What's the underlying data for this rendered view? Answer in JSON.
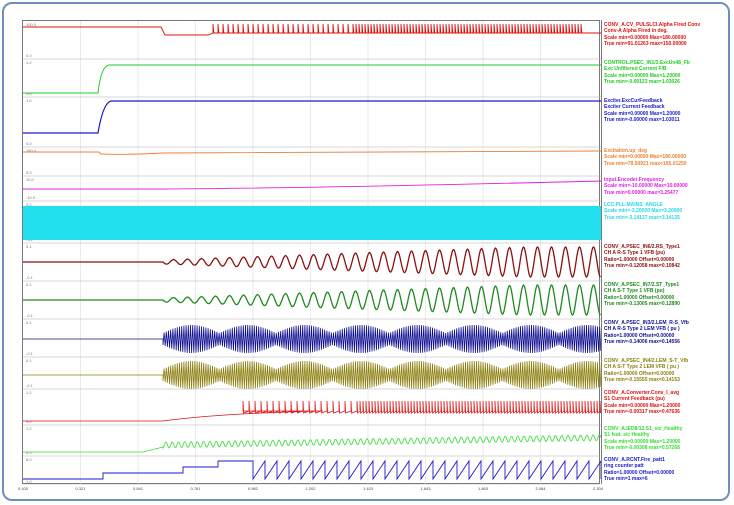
{
  "channels": [
    {
      "color": "#e01010",
      "lines": [
        "CONV_A.CV_PULSLCI.Alpha Fired Conv",
        "Conv-A Alpha Fired in deg.",
        "Scale min=0.00000 Max=180.00000",
        "True min=91.01263 max=150.00000"
      ]
    },
    {
      "color": "#22cc22",
      "lines": [
        "CONTROL.PSEC_IN1/3.ExcUn48_Fb",
        "Exc Unfiltered Current F/B",
        "Scale min=0.00000 Max=1.20000",
        "True min=-0.00123 max=1.03026"
      ]
    },
    {
      "color": "#1a1acc",
      "lines": [
        "Exciter.ExcCurFeedback",
        "Exciter Current Feedback",
        "Scale min=0.00000 Max=1.20000",
        "True min=-0.00000 max=1.03011"
      ]
    },
    {
      "color": "#f08030",
      "lines": [
        "Excitation.up_deg",
        "",
        "Scale min=0.00000 Max=180.00000",
        "True min=78.50921 max=165.01250"
      ]
    },
    {
      "color": "#e020e0",
      "lines": [
        "Input.Encoder.Frequency",
        "",
        "Scale min=-10.00000 Max=10.00000",
        "True min=0.00000 max=3.25477"
      ]
    },
    {
      "color": "#22d8e8",
      "lines": [
        "LCC.PLL.MAINS_ANGLE",
        "",
        "Scale min=-3.20000 Max=3.20000",
        "True min=-3.14137 max=3.14135"
      ]
    },
    {
      "color": "#8b1010",
      "lines": [
        "CONV_A.PSEC_IN6/2.RS_Type1",
        "CH A R-S Type 1 VFB (pu)",
        "Ratio=1.00000 Offset=0.00000",
        "True min=-0.12058 max=0.10842"
      ]
    },
    {
      "color": "#1e8a1e",
      "lines": [
        "CONV_A.PSEC_IN7/2.ST_Type1",
        "CH A S-T Type 1 VFB (pu)",
        "Ratio=1.00000 Offset=0.00000",
        "True min=-0.13005 max=0.12890"
      ]
    },
    {
      "color": "#101090",
      "lines": [
        "CONV_A.PSEC_IN3/2.LEM_R-S_Vfb",
        "CH A R-S Type 2 LEM VFB ( pu )",
        "Ratio=1.00000 Offset=0.00000",
        "True min=-0.14006 max=0.14556"
      ]
    },
    {
      "color": "#8c8010",
      "lines": [
        "CONV_A.PSEC_IN4/2.LEM_S-T_Vfb",
        "CH A S-T Type 2 LEM VFB ( pu )",
        "Ratio=1.00000 Offset=0.00000",
        "True min=-0.15555 max=0.14153"
      ]
    },
    {
      "color": "#e01010",
      "lines": [
        "CONV_A.Converter.Conv_I_avg",
        "S1 Current Feedback (pu)",
        "Scale min=0.00000 Max=1.20000",
        "True min=-0.00317 max=0.47636"
      ]
    },
    {
      "color": "#33dd33",
      "lines": [
        "CONV_A.IED8/12.S1_sic_Healthy",
        "S1 feat. s/c Healthy",
        "Scale min=0.00000 Max=1.20000",
        "True min=-0.00308 max=0.57268"
      ]
    },
    {
      "color": "#1a1acc",
      "lines": [
        "CONV_A.RCNT.Fire_patt1",
        "ring counter patt",
        "Ratio=1.00000 Offset=0.00000",
        "True min=1 max=6"
      ]
    }
  ],
  "x_ticks": [
    "0.100",
    "0.321",
    "0.541",
    "0.761",
    "0.982",
    "1.202",
    "1.423",
    "1.643",
    "1.863",
    "2.084",
    "2.304"
  ],
  "y_labels": [
    "100.0",
    "0.0",
    "1.2",
    "0.0",
    "1.0",
    "0.0",
    "180.0",
    "0.0",
    "10.0",
    "-10.0",
    "3.2",
    "-3.2",
    "0.1",
    "-0.1",
    "0.1",
    "-0.1",
    "0.1",
    "-0.1",
    "0.1",
    "-0.1",
    "1.2",
    "0.0",
    "1.2",
    "0.0",
    "6.0",
    "1.0"
  ]
}
